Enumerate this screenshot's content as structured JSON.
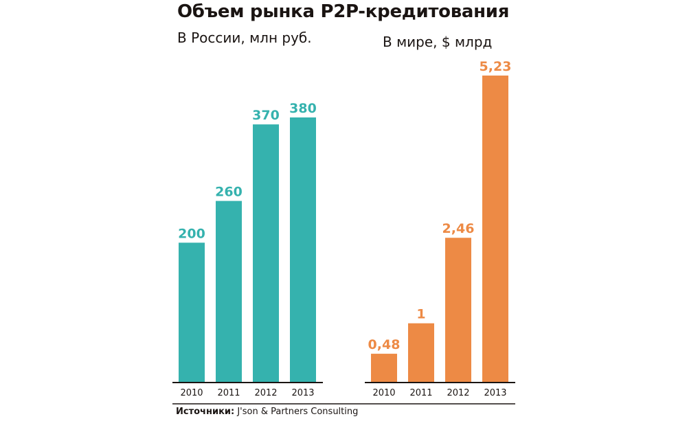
{
  "title": "Объем рынка P2P-кредитования",
  "source": {
    "label": "Источники:",
    "text": "J'son & Partners Consulting"
  },
  "chart_data": [
    {
      "type": "bar",
      "title": "В России, млн руб.",
      "categories": [
        "2010",
        "2011",
        "2012",
        "2013"
      ],
      "values": [
        200,
        260,
        370,
        380
      ],
      "value_labels": [
        "200",
        "260",
        "370",
        "380"
      ],
      "color": "#35b2ae",
      "xlabel": "",
      "ylabel": "",
      "ylim": [
        0,
        380
      ],
      "grid": false
    },
    {
      "type": "bar",
      "title": "В мире, $ млрд",
      "categories": [
        "2010",
        "2011",
        "2012",
        "2013"
      ],
      "values": [
        0.48,
        1,
        2.46,
        5.23
      ],
      "value_labels": [
        "0,48",
        "1",
        "2,46",
        "5,23"
      ],
      "color": "#ed8a45",
      "xlabel": "",
      "ylabel": "",
      "ylim": [
        0,
        5.23
      ],
      "grid": false
    }
  ]
}
